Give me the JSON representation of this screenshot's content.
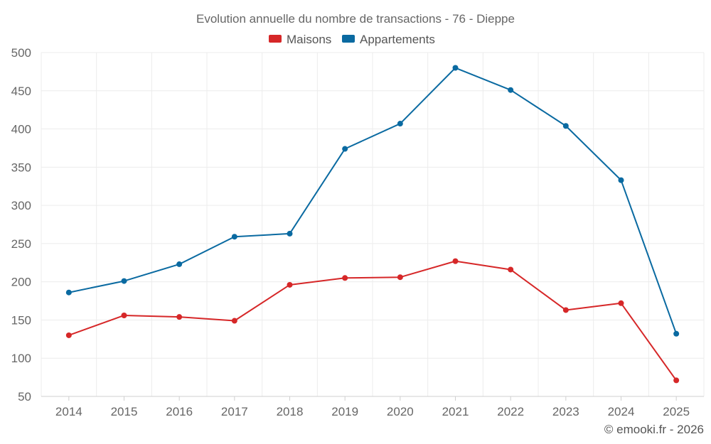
{
  "chart_data": {
    "type": "line",
    "title": "Evolution annuelle du nombre de transactions - 76 - Dieppe",
    "xlabel": "",
    "ylabel": "",
    "ylim": [
      50,
      500
    ],
    "yticks": [
      50,
      100,
      150,
      200,
      250,
      300,
      350,
      400,
      450,
      500
    ],
    "categories": [
      "2014",
      "2015",
      "2016",
      "2017",
      "2018",
      "2019",
      "2020",
      "2021",
      "2022",
      "2023",
      "2024",
      "2025"
    ],
    "legend_position": "top-center",
    "grid": true,
    "series": [
      {
        "name": "Maisons",
        "color": "#d62728",
        "values": [
          130,
          156,
          154,
          149,
          196,
          205,
          206,
          227,
          216,
          163,
          172,
          71
        ]
      },
      {
        "name": "Appartements",
        "color": "#0a6aa1",
        "values": [
          186,
          201,
          223,
          259,
          263,
          374,
          407,
          480,
          451,
          404,
          333,
          132
        ]
      }
    ],
    "credit": "© emooki.fr - 2026"
  }
}
